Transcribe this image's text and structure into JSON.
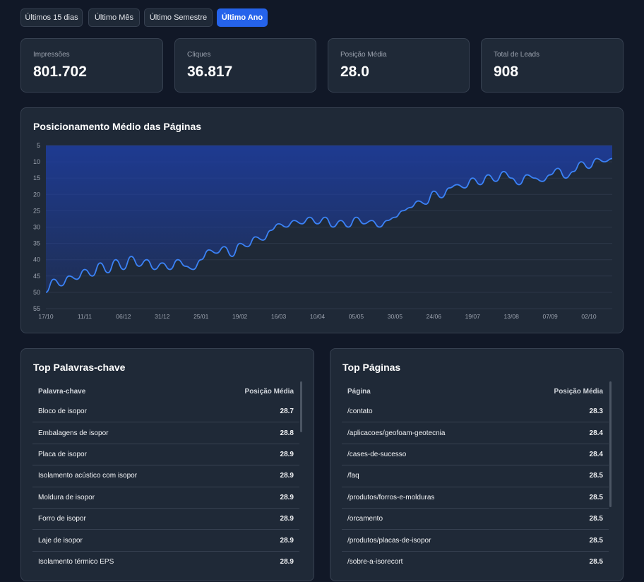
{
  "filters": [
    {
      "label": "Últimos 15 dias",
      "active": false
    },
    {
      "label": "Último Mês",
      "active": false
    },
    {
      "label": "Último Semestre",
      "active": false
    },
    {
      "label": "Último Ano",
      "active": true
    }
  ],
  "stats": [
    {
      "label": "Impressões",
      "value": "801.702"
    },
    {
      "label": "Cliques",
      "value": "36.817"
    },
    {
      "label": "Posição Média",
      "value": "28.0"
    },
    {
      "label": "Total de Leads",
      "value": "908"
    }
  ],
  "chart": {
    "title": "Posicionamento Médio das Páginas"
  },
  "chart_data": {
    "type": "area",
    "title": "Posicionamento Médio das Páginas",
    "y_reversed": true,
    "ylim": [
      5,
      55
    ],
    "yticks": [
      5,
      10,
      15,
      20,
      25,
      30,
      35,
      40,
      45,
      50,
      55
    ],
    "xticks": [
      "17/10",
      "11/11",
      "06/12",
      "31/12",
      "25/01",
      "19/02",
      "16/03",
      "10/04",
      "05/05",
      "30/05",
      "24/06",
      "19/07",
      "13/08",
      "07/09",
      "02/10"
    ],
    "grid": true,
    "line_color": "#3b82f6",
    "fill_color": "#1e40af",
    "x": [
      "17/10",
      "22/10",
      "27/10",
      "01/11",
      "06/11",
      "11/11",
      "16/11",
      "21/11",
      "26/11",
      "01/12",
      "06/12",
      "11/12",
      "16/12",
      "21/12",
      "26/12",
      "31/12",
      "05/01",
      "10/01",
      "15/01",
      "20/01",
      "25/01",
      "30/01",
      "04/02",
      "09/02",
      "14/02",
      "19/02",
      "24/02",
      "01/03",
      "06/03",
      "11/03",
      "16/03",
      "21/03",
      "26/03",
      "31/03",
      "05/04",
      "10/04",
      "15/04",
      "20/04",
      "25/04",
      "30/04",
      "05/05",
      "10/05",
      "15/05",
      "20/05",
      "25/05",
      "30/05",
      "04/06",
      "09/06",
      "14/06",
      "19/06",
      "24/06",
      "29/06",
      "04/07",
      "09/07",
      "14/07",
      "19/07",
      "24/07",
      "29/07",
      "03/08",
      "08/08",
      "13/08",
      "18/08",
      "23/08",
      "28/08",
      "02/09",
      "07/09",
      "12/09",
      "17/09",
      "22/09",
      "27/09",
      "02/10",
      "07/10",
      "12/10",
      "17/10"
    ],
    "y": [
      50,
      46,
      48,
      45,
      46,
      43,
      45,
      41,
      44,
      40,
      43,
      39,
      42,
      40,
      43,
      41,
      43,
      40,
      42,
      43,
      40,
      37,
      38,
      36,
      39,
      35,
      36,
      33,
      34,
      31,
      29,
      30,
      28,
      29,
      27,
      29,
      27,
      30,
      28,
      30,
      27,
      29,
      28,
      30,
      28,
      27,
      25,
      24,
      22,
      23,
      19,
      21,
      18,
      17,
      18,
      15,
      17,
      14,
      16,
      13,
      15,
      17,
      14,
      15,
      16,
      14,
      12,
      15,
      13,
      10,
      12,
      9,
      10,
      9
    ]
  },
  "keywords": {
    "title": "Top Palavras-chave",
    "headers": [
      "Palavra-chave",
      "Posição Média"
    ],
    "rows": [
      [
        "Bloco de isopor",
        "28.7"
      ],
      [
        "Embalagens de isopor",
        "28.8"
      ],
      [
        "Placa de isopor",
        "28.9"
      ],
      [
        "Isolamento acústico com isopor",
        "28.9"
      ],
      [
        "Moldura de isopor",
        "28.9"
      ],
      [
        "Forro de isopor",
        "28.9"
      ],
      [
        "Laje de isopor",
        "28.9"
      ],
      [
        "Isolamento térmico EPS",
        "28.9"
      ]
    ]
  },
  "pages": {
    "title": "Top Páginas",
    "headers": [
      "Página",
      "Posição Média"
    ],
    "rows": [
      [
        "/contato",
        "28.3"
      ],
      [
        "/aplicacoes/geofoam-geotecnia",
        "28.4"
      ],
      [
        "/cases-de-sucesso",
        "28.4"
      ],
      [
        "/faq",
        "28.5"
      ],
      [
        "/produtos/forros-e-molduras",
        "28.5"
      ],
      [
        "/orcamento",
        "28.5"
      ],
      [
        "/produtos/placas-de-isopor",
        "28.5"
      ],
      [
        "/sobre-a-isorecort",
        "28.5"
      ]
    ]
  }
}
